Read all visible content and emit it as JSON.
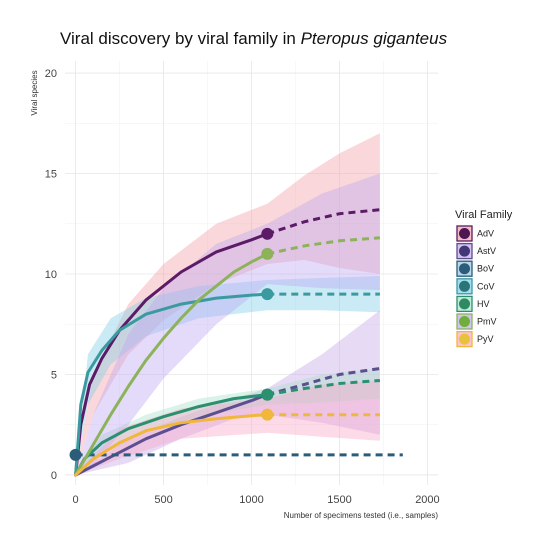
{
  "chart_data": {
    "type": "line",
    "title_prefix": "Viral discovery by viral family in ",
    "title_italic": "Pteropus giganteus",
    "xlabel": "Number of specimens tested (i.e., samples)",
    "ylabel": "Viral species",
    "xlim": [
      -60,
      2060
    ],
    "ylim": [
      -0.5,
      20.6
    ],
    "x_ticks": [
      0,
      500,
      1000,
      1500,
      2000
    ],
    "y_ticks": [
      0,
      5,
      10,
      15,
      20
    ],
    "grid": true,
    "legend_title": "Viral Family",
    "legend_position": "right",
    "series": [
      {
        "name": "AdV",
        "color": "#4b1652",
        "line_color": "#5b1b66",
        "ribbon_color": "#f4a0a8",
        "observed": [
          [
            0,
            0
          ],
          [
            30,
            2.5
          ],
          [
            80,
            4.5
          ],
          [
            150,
            5.8
          ],
          [
            250,
            7.2
          ],
          [
            400,
            8.7
          ],
          [
            600,
            10.1
          ],
          [
            800,
            11.1
          ],
          [
            1000,
            11.7
          ],
          [
            1090,
            12
          ]
        ],
        "extrapolated": [
          [
            1090,
            12
          ],
          [
            1300,
            12.6
          ],
          [
            1500,
            13
          ],
          [
            1730,
            13.2
          ]
        ],
        "band_upper": [
          [
            0,
            0
          ],
          [
            100,
            5
          ],
          [
            300,
            8.5
          ],
          [
            500,
            10.5
          ],
          [
            800,
            12.5
          ],
          [
            1090,
            13.5
          ],
          [
            1300,
            14.9
          ],
          [
            1500,
            16
          ],
          [
            1730,
            17
          ]
        ],
        "band_lower": [
          [
            0,
            0
          ],
          [
            100,
            3
          ],
          [
            300,
            6
          ],
          [
            500,
            7.7
          ],
          [
            800,
            9.5
          ],
          [
            1090,
            10.5
          ],
          [
            1300,
            10.7
          ],
          [
            1500,
            10.3
          ],
          [
            1730,
            10
          ]
        ],
        "end_point": [
          1090,
          12
        ]
      },
      {
        "name": "AstV",
        "color": "#413878",
        "line_color": "#5b4f8f",
        "ribbon_color": "#c5a6e8",
        "observed": [
          [
            0,
            0
          ],
          [
            200,
            0.9
          ],
          [
            400,
            1.8
          ],
          [
            600,
            2.5
          ],
          [
            800,
            3.1
          ],
          [
            1000,
            3.7
          ],
          [
            1090,
            4
          ]
        ],
        "extrapolated": [
          [
            1090,
            4
          ],
          [
            1300,
            4.5
          ],
          [
            1500,
            5
          ],
          [
            1730,
            5.3
          ]
        ],
        "band_upper": [
          [
            0,
            0
          ],
          [
            300,
            1.8
          ],
          [
            600,
            2.9
          ],
          [
            900,
            3.8
          ],
          [
            1090,
            4.3
          ],
          [
            1400,
            6
          ],
          [
            1730,
            8.2
          ]
        ],
        "band_lower": [
          [
            0,
            0
          ],
          [
            300,
            0.6
          ],
          [
            600,
            1.8
          ],
          [
            900,
            2.8
          ],
          [
            1090,
            3
          ],
          [
            1400,
            2.6
          ],
          [
            1730,
            2
          ]
        ],
        "end_point": [
          1090,
          4
        ]
      },
      {
        "name": "BoV",
        "color": "#2b5c7a",
        "line_color": "#2b5c7a",
        "ribbon_color": "#9ac7de",
        "observed": [
          [
            0,
            1
          ]
        ],
        "extrapolated": [
          [
            0,
            1
          ],
          [
            1860,
            1
          ]
        ],
        "band_upper": [],
        "band_lower": [],
        "end_point": [
          0,
          1
        ]
      },
      {
        "name": "CoV",
        "color": "#2a7677",
        "line_color": "#3a9aa0",
        "ribbon_color": "#80d0e8",
        "observed": [
          [
            0,
            0
          ],
          [
            30,
            3.5
          ],
          [
            70,
            5.1
          ],
          [
            150,
            6.2
          ],
          [
            250,
            7.2
          ],
          [
            400,
            8
          ],
          [
            600,
            8.5
          ],
          [
            800,
            8.8
          ],
          [
            1000,
            8.95
          ],
          [
            1090,
            9
          ]
        ],
        "extrapolated": [
          [
            1090,
            9
          ],
          [
            1300,
            9
          ],
          [
            1500,
            9
          ],
          [
            1730,
            9
          ]
        ],
        "band_upper": [
          [
            0,
            0
          ],
          [
            70,
            6
          ],
          [
            200,
            7.8
          ],
          [
            400,
            8.8
          ],
          [
            700,
            9.4
          ],
          [
            1090,
            9.7
          ],
          [
            1400,
            9.8
          ],
          [
            1730,
            9.9
          ]
        ],
        "band_lower": [
          [
            0,
            0
          ],
          [
            70,
            3.5
          ],
          [
            200,
            5.5
          ],
          [
            400,
            6.9
          ],
          [
            700,
            7.8
          ],
          [
            1090,
            8.2
          ],
          [
            1400,
            8.2
          ],
          [
            1730,
            8.1
          ]
        ],
        "end_point": [
          1090,
          9
        ]
      },
      {
        "name": "HV",
        "color": "#2e8a62",
        "line_color": "#2a9070",
        "ribbon_color": "#a9e0c8",
        "observed": [
          [
            0,
            0
          ],
          [
            50,
            0.8
          ],
          [
            150,
            1.6
          ],
          [
            300,
            2.3
          ],
          [
            500,
            2.9
          ],
          [
            700,
            3.4
          ],
          [
            900,
            3.8
          ],
          [
            1090,
            4
          ]
        ],
        "extrapolated": [
          [
            1090,
            4
          ],
          [
            1300,
            4.3
          ],
          [
            1500,
            4.55
          ],
          [
            1730,
            4.7
          ]
        ],
        "band_upper": [
          [
            0,
            0
          ],
          [
            150,
            2
          ],
          [
            400,
            3
          ],
          [
            700,
            3.8
          ],
          [
            1090,
            4.3
          ],
          [
            1400,
            5
          ],
          [
            1730,
            5.3
          ]
        ],
        "band_lower": [
          [
            0,
            0
          ],
          [
            150,
            1
          ],
          [
            400,
            2.1
          ],
          [
            700,
            2.9
          ],
          [
            1090,
            3.5
          ],
          [
            1400,
            3.6
          ],
          [
            1730,
            3.8
          ]
        ],
        "end_point": [
          1090,
          4
        ]
      },
      {
        "name": "PmV",
        "color": "#6fae3a",
        "line_color": "#8cb35a",
        "ribbon_color": "#bfa8f4",
        "observed": [
          [
            0,
            0
          ],
          [
            100,
            1.5
          ],
          [
            200,
            3
          ],
          [
            300,
            4.4
          ],
          [
            400,
            5.7
          ],
          [
            500,
            6.8
          ],
          [
            600,
            7.8
          ],
          [
            700,
            8.7
          ],
          [
            800,
            9.4
          ],
          [
            900,
            10.1
          ],
          [
            1000,
            10.6
          ],
          [
            1090,
            11
          ]
        ],
        "extrapolated": [
          [
            1090,
            11
          ],
          [
            1300,
            11.4
          ],
          [
            1500,
            11.65
          ],
          [
            1730,
            11.8
          ]
        ],
        "band_upper": [
          [
            0,
            0
          ],
          [
            100,
            3
          ],
          [
            300,
            7
          ],
          [
            500,
            9.3
          ],
          [
            800,
            11.5
          ],
          [
            1090,
            12.5
          ],
          [
            1400,
            14
          ],
          [
            1730,
            15
          ]
        ],
        "band_lower": [
          [
            0,
            0
          ],
          [
            100,
            0.5
          ],
          [
            300,
            2.5
          ],
          [
            500,
            4.8
          ],
          [
            800,
            7.5
          ],
          [
            1090,
            9.5
          ],
          [
            1400,
            9.3
          ],
          [
            1730,
            9.2
          ]
        ],
        "end_point": [
          1090,
          11
        ]
      },
      {
        "name": "PyV",
        "color": "#e8c23a",
        "line_color": "#f0b73a",
        "ribbon_color": "#f9a8c8",
        "observed": [
          [
            0,
            0
          ],
          [
            100,
            0.8
          ],
          [
            250,
            1.6
          ],
          [
            400,
            2.2
          ],
          [
            600,
            2.6
          ],
          [
            800,
            2.8
          ],
          [
            1000,
            2.95
          ],
          [
            1090,
            3
          ]
        ],
        "extrapolated": [
          [
            1090,
            3
          ],
          [
            1300,
            3
          ],
          [
            1500,
            3
          ],
          [
            1730,
            3
          ]
        ],
        "band_upper": [
          [
            0,
            0
          ],
          [
            250,
            2.3
          ],
          [
            600,
            3.3
          ],
          [
            1090,
            3.8
          ],
          [
            1400,
            4.5
          ],
          [
            1730,
            4.7
          ]
        ],
        "band_lower": [
          [
            0,
            0
          ],
          [
            250,
            0.8
          ],
          [
            600,
            1.8
          ],
          [
            1090,
            2.1
          ],
          [
            1400,
            1.9
          ],
          [
            1730,
            1.7
          ]
        ],
        "end_point": [
          1090,
          3
        ]
      }
    ]
  }
}
